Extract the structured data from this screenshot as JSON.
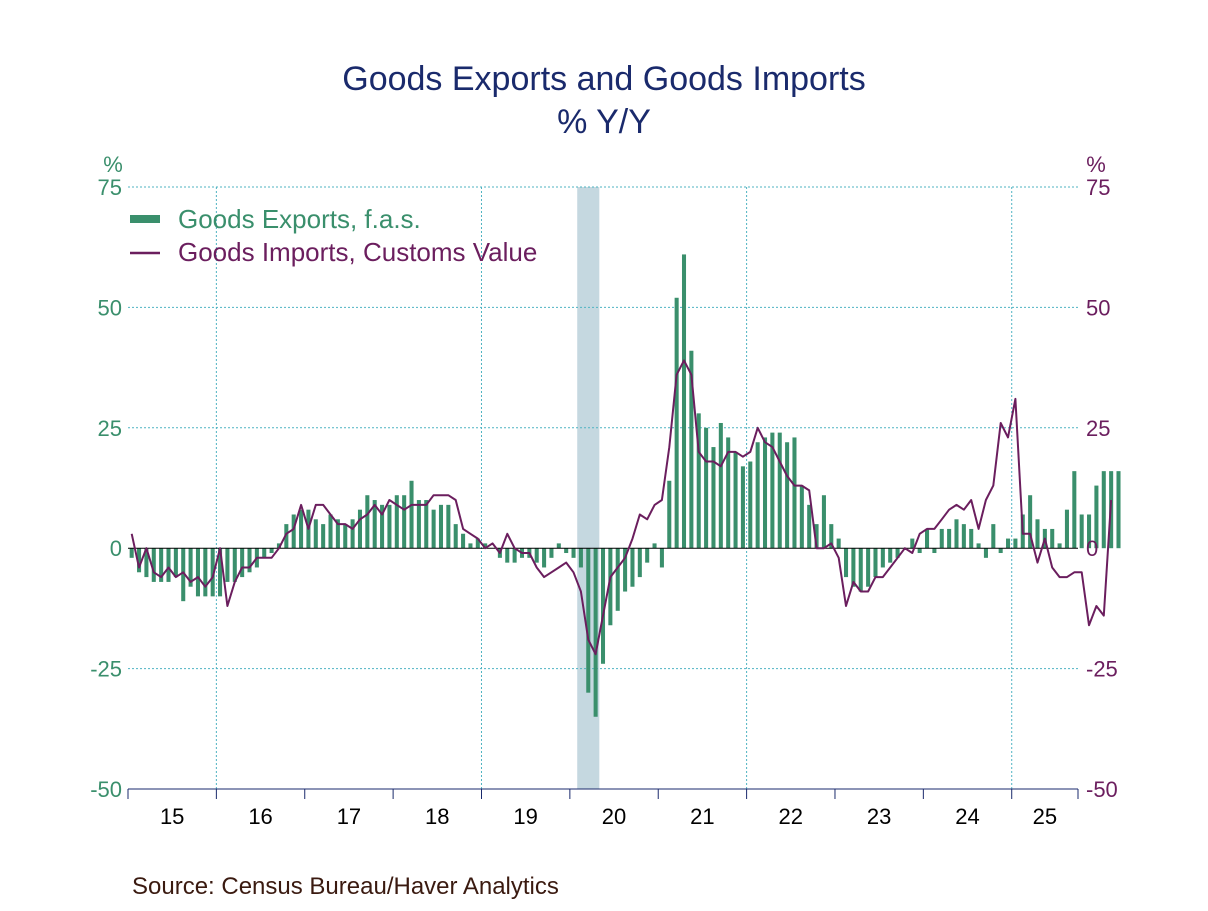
{
  "chart_data": {
    "type": "bar+line",
    "title": "Goods Exports and Goods Imports",
    "subtitle": "% Y/Y",
    "left_axis": {
      "unit_label": "%",
      "ylim": [
        -50,
        75
      ],
      "ticks": [
        75,
        50,
        25,
        0,
        -25,
        -50
      ],
      "color": "#3a8f6c"
    },
    "right_axis": {
      "unit_label": "%",
      "ylim": [
        -50,
        75
      ],
      "ticks": [
        75,
        50,
        25,
        0,
        -25,
        -50
      ],
      "color": "#6b1e5e"
    },
    "x_axis": {
      "start": "2015-01",
      "end": "2025-09",
      "year_labels": [
        "15",
        "16",
        "17",
        "18",
        "19",
        "20",
        "21",
        "22",
        "23",
        "24",
        "25"
      ]
    },
    "grid": true,
    "legend": {
      "placement": "top-left"
    },
    "recession_band": {
      "start": "2020-02",
      "end": "2020-04",
      "color": "#c5d8e0"
    },
    "series": [
      {
        "name": "Goods Exports, f.a.s.",
        "kind": "bar",
        "axis": "left",
        "color": "#3a8f6c",
        "values": [
          -2,
          -5,
          -6,
          -7,
          -7,
          -7,
          -6,
          -11,
          -8,
          -10,
          -10,
          -10,
          -10,
          -7,
          -7,
          -6,
          -5,
          -4,
          -2,
          -1,
          1,
          5,
          7,
          8,
          8,
          6,
          5,
          7,
          6,
          5,
          6,
          8,
          11,
          10,
          9,
          9,
          11,
          11,
          14,
          10,
          10,
          8,
          9,
          9,
          5,
          3,
          1,
          2,
          1,
          0,
          -2,
          -3,
          -3,
          -2,
          -2,
          -3,
          -4,
          -2,
          1,
          -1,
          -2,
          -4,
          -30,
          -35,
          -24,
          -16,
          -13,
          -9,
          -8,
          -6,
          -3,
          1,
          -4,
          14,
          52,
          61,
          41,
          28,
          25,
          21,
          26,
          23,
          20,
          17,
          18,
          22,
          23,
          24,
          24,
          22,
          23,
          13,
          9,
          5,
          11,
          5,
          2,
          -6,
          -8,
          -9,
          -8,
          -6,
          -4,
          -3,
          -2,
          0,
          2,
          -1,
          4,
          -1,
          4,
          4,
          6,
          5,
          4,
          1,
          -2,
          5,
          -1,
          2,
          2,
          7,
          11,
          6,
          4,
          4,
          1,
          8,
          16,
          7,
          7,
          13,
          16,
          16,
          16
        ]
      },
      {
        "name": "Goods Imports, Customs Value",
        "kind": "line",
        "axis": "right",
        "color": "#6b1e5e",
        "values": [
          3,
          -4,
          0,
          -5,
          -6,
          -4,
          -6,
          -5,
          -7,
          -6,
          -8,
          -6,
          0,
          -12,
          -7,
          -4,
          -4,
          -2,
          -2,
          -2,
          0,
          3,
          4,
          9,
          4,
          9,
          9,
          7,
          5,
          5,
          4,
          6,
          7,
          9,
          7,
          10,
          9,
          8,
          9,
          9,
          9,
          11,
          11,
          11,
          10,
          4,
          3,
          2,
          0,
          1,
          -1,
          3,
          0,
          -1,
          -1,
          -4,
          -6,
          -5,
          -4,
          -3,
          -5,
          -9,
          -19,
          -22,
          -14,
          -6,
          -4,
          -2,
          2,
          7,
          6,
          9,
          10,
          21,
          36,
          39,
          36,
          20,
          18,
          18,
          17,
          20,
          20,
          19,
          20,
          25,
          22,
          21,
          18,
          15,
          13,
          13,
          12,
          0,
          0,
          1,
          -2,
          -12,
          -7,
          -9,
          -9,
          -6,
          -6,
          -4,
          -2,
          0,
          -1,
          3,
          4,
          4,
          6,
          8,
          9,
          8,
          10,
          4,
          10,
          13,
          26,
          23,
          31,
          3,
          3,
          -3,
          2,
          -4,
          -6,
          -6,
          -5,
          -5,
          -16,
          -12,
          -14,
          10
        ]
      }
    ],
    "source": "Source:  Census Bureau/Haver Analytics"
  }
}
